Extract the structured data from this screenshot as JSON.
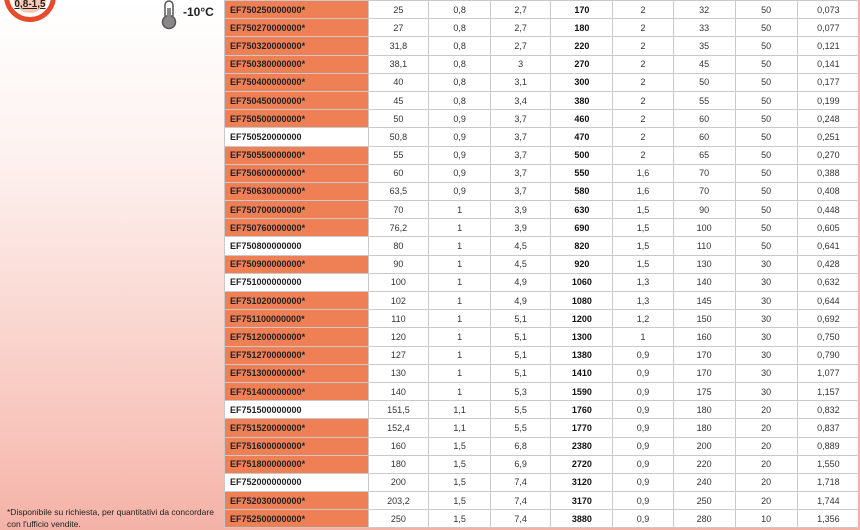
{
  "badge": {
    "label": "0,8-1,5"
  },
  "temperature": {
    "value": "-10°C",
    "icon": "thermometer-icon"
  },
  "footnote": "*Disponibile su richiesta, per quantitativi da concordare con l'ufficio vendite.",
  "colors": {
    "on_request": "#ef7f55",
    "badge_ring": "#e84a2c"
  },
  "rows": [
    [
      "EF750250000000*",
      "25",
      "0,8",
      "2,7",
      "170",
      "2",
      "32",
      "50",
      "0,073"
    ],
    [
      "EF750270000000*",
      "27",
      "0,8",
      "2,7",
      "180",
      "2",
      "33",
      "50",
      "0,077"
    ],
    [
      "EF750320000000*",
      "31,8",
      "0,8",
      "2,7",
      "220",
      "2",
      "35",
      "50",
      "0,121"
    ],
    [
      "EF750380000000*",
      "38,1",
      "0,8",
      "3",
      "270",
      "2",
      "45",
      "50",
      "0,141"
    ],
    [
      "EF750400000000*",
      "40",
      "0,8",
      "3,1",
      "300",
      "2",
      "50",
      "50",
      "0,177"
    ],
    [
      "EF750450000000*",
      "45",
      "0,8",
      "3,4",
      "380",
      "2",
      "55",
      "50",
      "0,199"
    ],
    [
      "EF750500000000*",
      "50",
      "0,9",
      "3,7",
      "460",
      "2",
      "60",
      "50",
      "0,248"
    ],
    [
      "EF750520000000",
      "50,8",
      "0,9",
      "3,7",
      "470",
      "2",
      "60",
      "50",
      "0,251"
    ],
    [
      "EF750550000000*",
      "55",
      "0,9",
      "3,7",
      "500",
      "2",
      "65",
      "50",
      "0,270"
    ],
    [
      "EF750600000000*",
      "60",
      "0,9",
      "3,7",
      "550",
      "1,6",
      "70",
      "50",
      "0,388"
    ],
    [
      "EF750630000000*",
      "63,5",
      "0,9",
      "3,7",
      "580",
      "1,6",
      "70",
      "50",
      "0,408"
    ],
    [
      "EF750700000000*",
      "70",
      "1",
      "3,9",
      "630",
      "1,5",
      "90",
      "50",
      "0,448"
    ],
    [
      "EF750760000000*",
      "76,2",
      "1",
      "3,9",
      "690",
      "1,5",
      "100",
      "50",
      "0,605"
    ],
    [
      "EF750800000000",
      "80",
      "1",
      "4,5",
      "820",
      "1,5",
      "110",
      "50",
      "0,641"
    ],
    [
      "EF750900000000*",
      "90",
      "1",
      "4,5",
      "920",
      "1,5",
      "130",
      "30",
      "0,428"
    ],
    [
      "EF751000000000",
      "100",
      "1",
      "4,9",
      "1060",
      "1,3",
      "140",
      "30",
      "0,632"
    ],
    [
      "EF751020000000*",
      "102",
      "1",
      "4,9",
      "1080",
      "1,3",
      "145",
      "30",
      "0,644"
    ],
    [
      "EF751100000000*",
      "110",
      "1",
      "5,1",
      "1200",
      "1,2",
      "150",
      "30",
      "0,692"
    ],
    [
      "EF751200000000*",
      "120",
      "1",
      "5,1",
      "1300",
      "1",
      "160",
      "30",
      "0,750"
    ],
    [
      "EF751270000000*",
      "127",
      "1",
      "5,1",
      "1380",
      "0,9",
      "170",
      "30",
      "0,790"
    ],
    [
      "EF751300000000*",
      "130",
      "1",
      "5,1",
      "1410",
      "0,9",
      "170",
      "30",
      "1,077"
    ],
    [
      "EF751400000000*",
      "140",
      "1",
      "5,3",
      "1590",
      "0,9",
      "175",
      "30",
      "1,157"
    ],
    [
      "EF751500000000",
      "151,5",
      "1,1",
      "5,5",
      "1760",
      "0,9",
      "180",
      "20",
      "0,832"
    ],
    [
      "EF751520000000*",
      "152,4",
      "1,1",
      "5,5",
      "1770",
      "0,9",
      "180",
      "20",
      "0,837"
    ],
    [
      "EF751600000000*",
      "160",
      "1,5",
      "6,8",
      "2380",
      "0,9",
      "200",
      "20",
      "0,889"
    ],
    [
      "EF751800000000*",
      "180",
      "1,5",
      "6,9",
      "2720",
      "0,9",
      "220",
      "20",
      "1,550"
    ],
    [
      "EF752000000000",
      "200",
      "1,5",
      "7,4",
      "3120",
      "0,9",
      "240",
      "20",
      "1,718"
    ],
    [
      "EF752030000000*",
      "203,2",
      "1,5",
      "7,4",
      "3170",
      "0,9",
      "250",
      "20",
      "1,744"
    ],
    [
      "EF752500000000*",
      "250",
      "1,5",
      "7,4",
      "3880",
      "0,9",
      "280",
      "10",
      "1,356"
    ]
  ]
}
